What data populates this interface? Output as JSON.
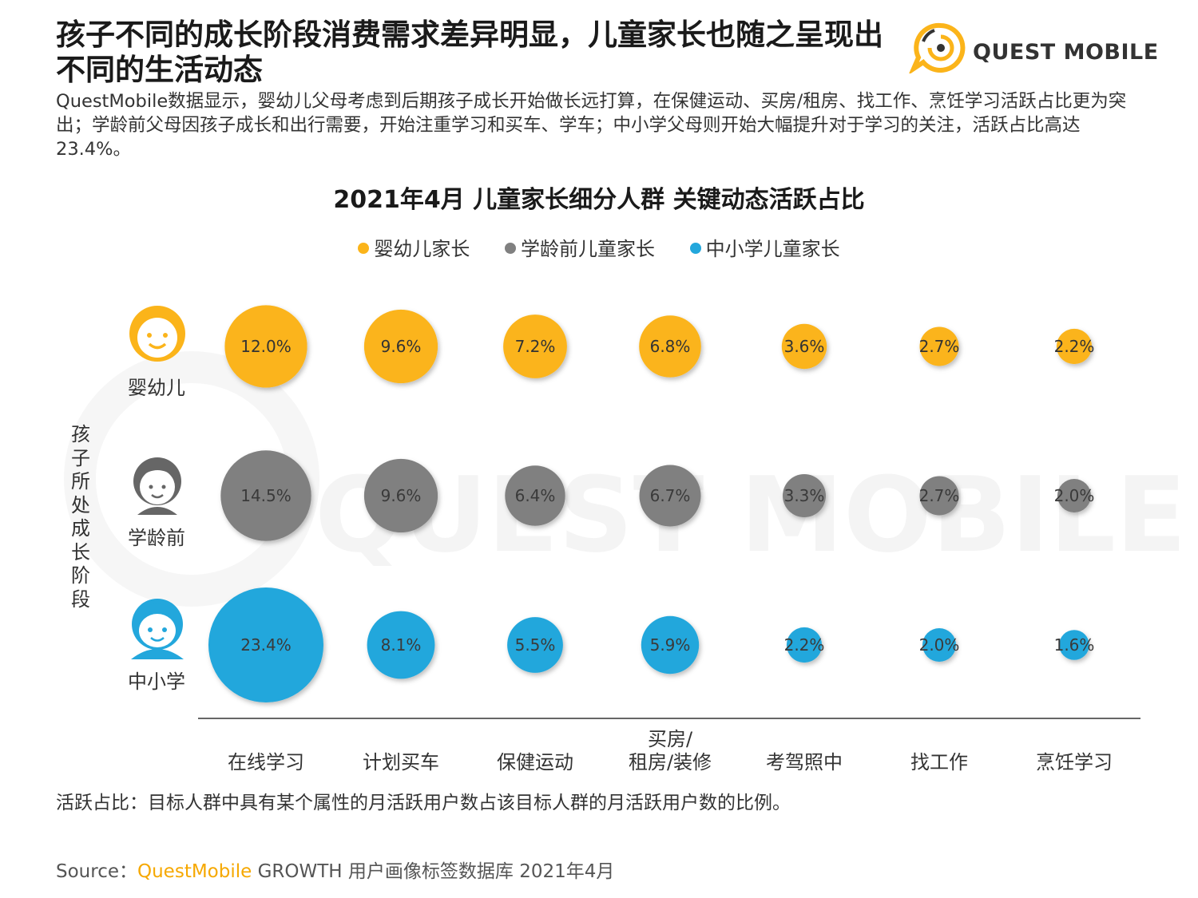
{
  "header": {
    "title": "孩子不同的成长阶段消费需求差异明显，儿童家长也随之呈现出不同的生活动态",
    "description": "QuestMobile数据显示，婴幼儿父母考虑到后期孩子成长开始做长远打算，在保健运动、买房/租房、找工作、烹饪学习活跃占比更为突出；学龄前父母因孩子成长和出行需要，开始注重学习和买车、学车；中小学父母则开始大幅提升对于学习的关注，活跃占比高达23.4%。",
    "logo_text": "QUEST MOBILE",
    "watermark_text": "QUEST MOBILE"
  },
  "chart_data": {
    "type": "bubble",
    "title": "2021年4月 儿童家长细分人群 关键动态活跃占比",
    "ylabel": "孩子所处成长阶段",
    "categories": [
      "在线学习",
      "计划买车",
      "保健运动",
      "买房/\n租房/装修",
      "考驾照中",
      "找工作",
      "烹饪学习"
    ],
    "series": [
      {
        "name": "婴幼儿家长",
        "row_label": "婴幼儿",
        "color": "#fbb41a",
        "values": [
          12.0,
          9.6,
          7.2,
          6.8,
          3.6,
          2.7,
          2.2
        ],
        "labels": [
          "12.0%",
          "9.6%",
          "7.2%",
          "6.8%",
          "3.6%",
          "2.7%",
          "2.2%"
        ]
      },
      {
        "name": "学龄前儿童家长",
        "row_label": "学龄前",
        "color": "#808080",
        "values": [
          14.5,
          9.6,
          6.4,
          6.7,
          3.3,
          2.7,
          2.0
        ],
        "labels": [
          "14.5%",
          "9.6%",
          "6.4%",
          "6.7%",
          "3.3%",
          "2.7%",
          "2.0%"
        ]
      },
      {
        "name": "中小学儿童家长",
        "row_label": "中小学",
        "color": "#23a7dc",
        "values": [
          23.4,
          8.1,
          5.5,
          5.9,
          2.2,
          2.0,
          1.6
        ],
        "labels": [
          "23.4%",
          "8.1%",
          "5.5%",
          "5.9%",
          "2.2%",
          "2.0%",
          "1.6%"
        ]
      }
    ],
    "legend_position": "top-center",
    "grid": false
  },
  "footnote": "活跃占比：目标人群中具有某个属性的月活跃用户数占该目标人群的月活跃用户数的比例。",
  "source": {
    "prefix": "Source：",
    "brand": "QuestMobile",
    "suffix": " GROWTH 用户画像标签数据库 2021年4月"
  }
}
